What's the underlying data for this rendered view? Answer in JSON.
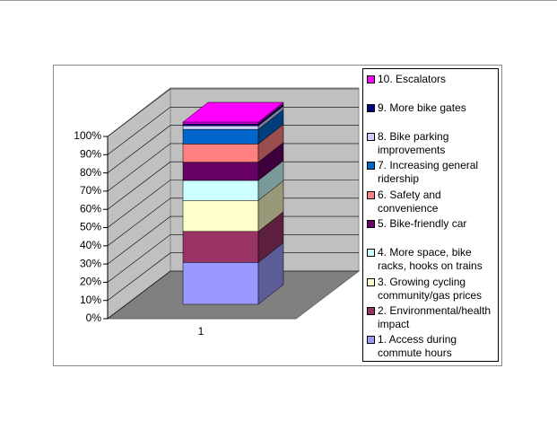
{
  "chart_data": {
    "type": "bar",
    "stacked": true,
    "categories": [
      "1"
    ],
    "ylim": [
      0,
      100
    ],
    "yticks": [
      {
        "value": 0,
        "label": "0%"
      },
      {
        "value": 10,
        "label": "10%"
      },
      {
        "value": 20,
        "label": "20%"
      },
      {
        "value": 30,
        "label": "30%"
      },
      {
        "value": 40,
        "label": "40%"
      },
      {
        "value": 50,
        "label": "50%"
      },
      {
        "value": 60,
        "label": "60%"
      },
      {
        "value": 70,
        "label": "70%"
      },
      {
        "value": 80,
        "label": "80%"
      },
      {
        "value": 90,
        "label": "90%"
      },
      {
        "value": 100,
        "label": "100%"
      }
    ],
    "grid": true,
    "legend": "right",
    "legend_reversed": true,
    "series": [
      {
        "name": "1. Access during commute hours",
        "color": "#9999ff",
        "values": [
          23
        ]
      },
      {
        "name": "2. Environmental/health impact",
        "color": "#993366",
        "values": [
          17
        ]
      },
      {
        "name": "3. Growing cycling community/gas prices",
        "color": "#ffffcc",
        "values": [
          17
        ]
      },
      {
        "name": "4. More space, bike racks, hooks on trains",
        "color": "#ccffff",
        "values": [
          11
        ]
      },
      {
        "name": "5. Bike-friendly car",
        "color": "#660066",
        "values": [
          10
        ]
      },
      {
        "name": "6. Safety and convenience",
        "color": "#ff8080",
        "values": [
          10
        ]
      },
      {
        "name": "7. Increasing general ridership",
        "color": "#0066cc",
        "values": [
          8
        ]
      },
      {
        "name": "8. Bike parking improvements",
        "color": "#ccccff",
        "values": [
          2
        ]
      },
      {
        "name": "9. More bike gates",
        "color": "#000080",
        "values": [
          1
        ]
      },
      {
        "name": "10. Escalators",
        "color": "#ff00ff",
        "values": [
          1
        ]
      }
    ]
  }
}
